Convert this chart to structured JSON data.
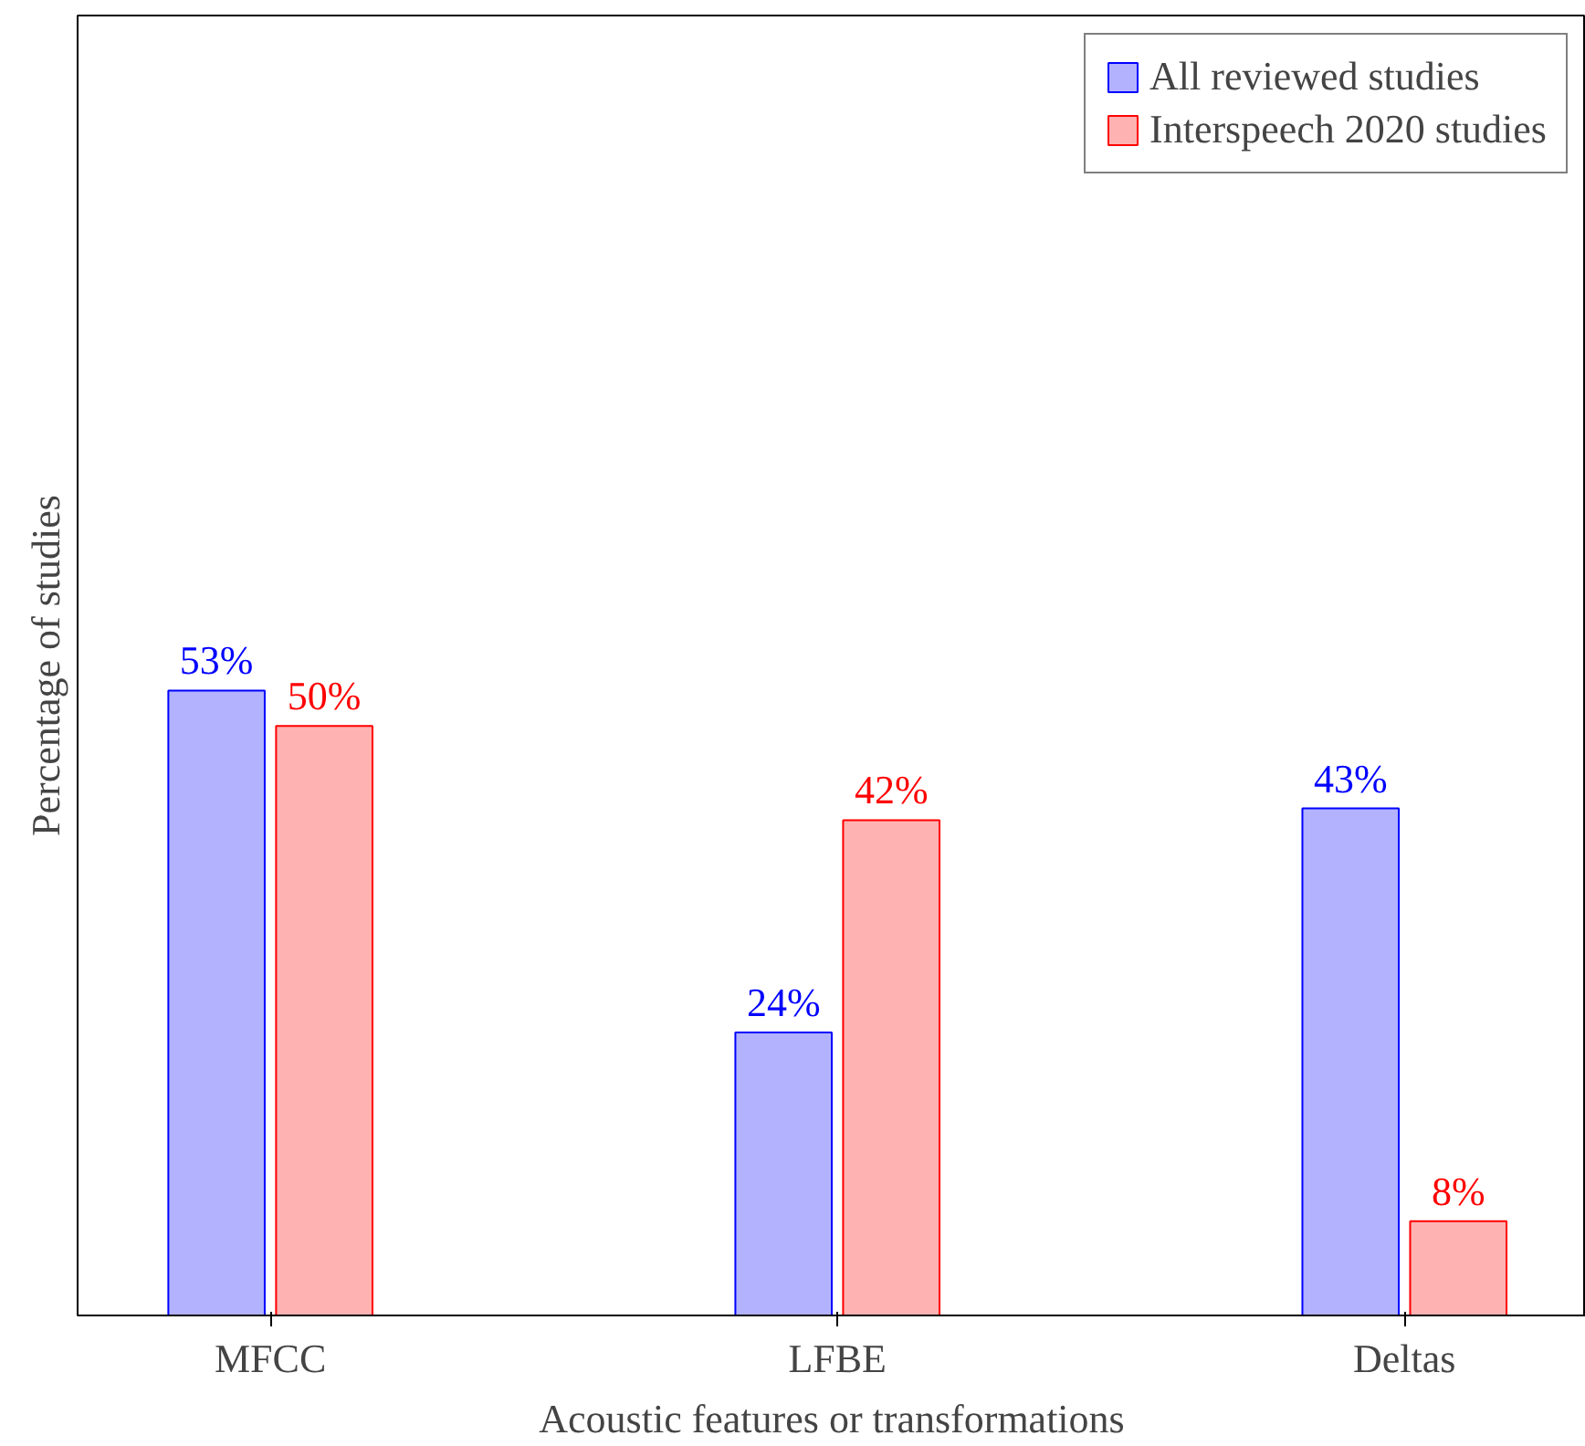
{
  "chart_data": {
    "type": "bar",
    "xlabel": "Acoustic features or transformations",
    "ylabel": "Percentage of studies",
    "categories": [
      "MFCC",
      "LFBE",
      "Deltas"
    ],
    "series": [
      {
        "name": "All reviewed studies",
        "color": "#0000ff",
        "values": [
          53,
          24,
          43
        ],
        "value_labels": [
          "53%",
          "24%",
          "43%"
        ]
      },
      {
        "name": "Interspeech 2020 studies",
        "color": "#ff0000",
        "values": [
          50,
          42,
          8
        ],
        "value_labels": [
          "50%",
          "42%",
          "8%"
        ]
      }
    ],
    "legend": "top right",
    "grid": false
  }
}
